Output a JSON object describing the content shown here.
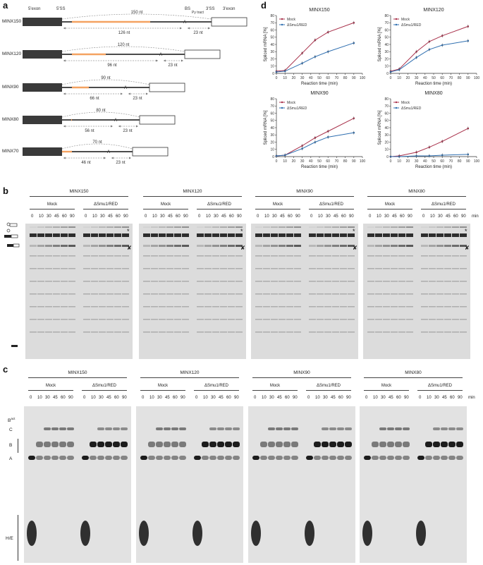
{
  "panels": {
    "a": "a",
    "b": "b",
    "c": "c",
    "d": "d"
  },
  "schematic": {
    "header": {
      "exon5": "5'exon",
      "ss5": "5'SS",
      "bs": "BS",
      "py": "Py tract",
      "ss3": "3'SS",
      "exon3": "3'exon"
    },
    "constructs": [
      {
        "name": "MINX150",
        "top": "150 nt",
        "left": "126 nt",
        "right": "23 nt"
      },
      {
        "name": "MINX120",
        "top": "120 nt",
        "left": "96 nt",
        "right": "23 nt"
      },
      {
        "name": "MINX90",
        "top": "90 nt",
        "left": "66 nt",
        "right": "23 nt"
      },
      {
        "name": "MINX80",
        "top": "80 nt",
        "left": "56 nt",
        "right": "23 nt"
      },
      {
        "name": "MINX70",
        "top": "70 nt",
        "left": "46 nt",
        "right": "23 nt"
      }
    ],
    "branch_letter": "A"
  },
  "gel_common": {
    "mock": "Mock",
    "dsmu": "ΔSmu1/RED",
    "min": "min",
    "timepoints": [
      "0",
      "10",
      "30",
      "45",
      "60",
      "90"
    ]
  },
  "gel_b": {
    "titles": [
      "MINX150",
      "MINX120",
      "MINX90",
      "MINX80"
    ],
    "asterisk": "*",
    "cross": "✘"
  },
  "gel_c": {
    "titles": [
      "MINX150",
      "MINX120",
      "MINX90",
      "MINX80"
    ],
    "labels": {
      "bact": "B",
      "bact_sup": "act",
      "c": "C",
      "b": "B",
      "a": "A",
      "he": "H/E"
    }
  },
  "chart_data": [
    {
      "type": "line",
      "title": "MINX150",
      "xlabel": "Reaction time (min)",
      "ylabel": "Spliced mRNA [%]",
      "xlim": [
        0,
        100
      ],
      "ylim": [
        0,
        80
      ],
      "xticks": [
        0,
        10,
        20,
        30,
        40,
        50,
        60,
        70,
        80,
        90,
        100
      ],
      "yticks": [
        0,
        10,
        20,
        30,
        40,
        50,
        60,
        70,
        80
      ],
      "x": [
        0,
        10,
        30,
        45,
        60,
        90
      ],
      "series": [
        {
          "name": "Mock",
          "color": "#a8304a",
          "values": [
            3,
            4,
            28,
            46,
            57,
            70
          ]
        },
        {
          "name": "ΔSmu1/RED",
          "color": "#2f6fb0",
          "values": [
            2,
            3,
            14,
            23,
            30,
            42
          ]
        }
      ],
      "legend": "top-left"
    },
    {
      "type": "line",
      "title": "MINX120",
      "xlabel": "Reaction time (min)",
      "ylabel": "Spliced mRNA [%]",
      "xlim": [
        0,
        100
      ],
      "ylim": [
        0,
        80
      ],
      "xticks": [
        0,
        10,
        20,
        30,
        40,
        50,
        60,
        70,
        80,
        90,
        100
      ],
      "yticks": [
        0,
        10,
        20,
        30,
        40,
        50,
        60,
        70,
        80
      ],
      "x": [
        0,
        10,
        30,
        45,
        60,
        90
      ],
      "series": [
        {
          "name": "Mock",
          "color": "#a8304a",
          "values": [
            3,
            6,
            30,
            44,
            52,
            65
          ]
        },
        {
          "name": "ΔSmu1/RED",
          "color": "#2f6fb0",
          "values": [
            2,
            5,
            22,
            33,
            39,
            45
          ]
        }
      ],
      "legend": "top-left"
    },
    {
      "type": "line",
      "title": "MINX90",
      "xlabel": "Reaction time (min)",
      "ylabel": "Spliced mRNA [%]",
      "xlim": [
        0,
        100
      ],
      "ylim": [
        0,
        80
      ],
      "xticks": [
        0,
        10,
        20,
        30,
        40,
        50,
        60,
        70,
        80,
        90,
        100
      ],
      "yticks": [
        0,
        10,
        20,
        30,
        40,
        50,
        60,
        70,
        80
      ],
      "x": [
        0,
        10,
        30,
        45,
        60,
        90
      ],
      "series": [
        {
          "name": "Mock",
          "color": "#a8304a",
          "values": [
            1,
            2,
            15,
            26,
            35,
            53
          ]
        },
        {
          "name": "ΔSmu1/RED",
          "color": "#2f6fb0",
          "values": [
            1,
            2,
            11,
            20,
            27,
            33
          ]
        }
      ],
      "legend": "top-left"
    },
    {
      "type": "line",
      "title": "MINX80",
      "xlabel": "Reaction time (min)",
      "ylabel": "Spliced mRNA [%]",
      "xlim": [
        0,
        100
      ],
      "ylim": [
        0,
        80
      ],
      "xticks": [
        0,
        10,
        20,
        30,
        40,
        50,
        60,
        70,
        80,
        90,
        100
      ],
      "yticks": [
        0,
        10,
        20,
        30,
        40,
        50,
        60,
        70,
        80
      ],
      "x": [
        0,
        10,
        30,
        45,
        60,
        90
      ],
      "series": [
        {
          "name": "Mock",
          "color": "#a8304a",
          "values": [
            0,
            1,
            6,
            13,
            21,
            39
          ]
        },
        {
          "name": "ΔSmu1/RED",
          "color": "#2f6fb0",
          "values": [
            0,
            0,
            1,
            1,
            2,
            3
          ]
        }
      ],
      "legend": "top-left"
    }
  ]
}
